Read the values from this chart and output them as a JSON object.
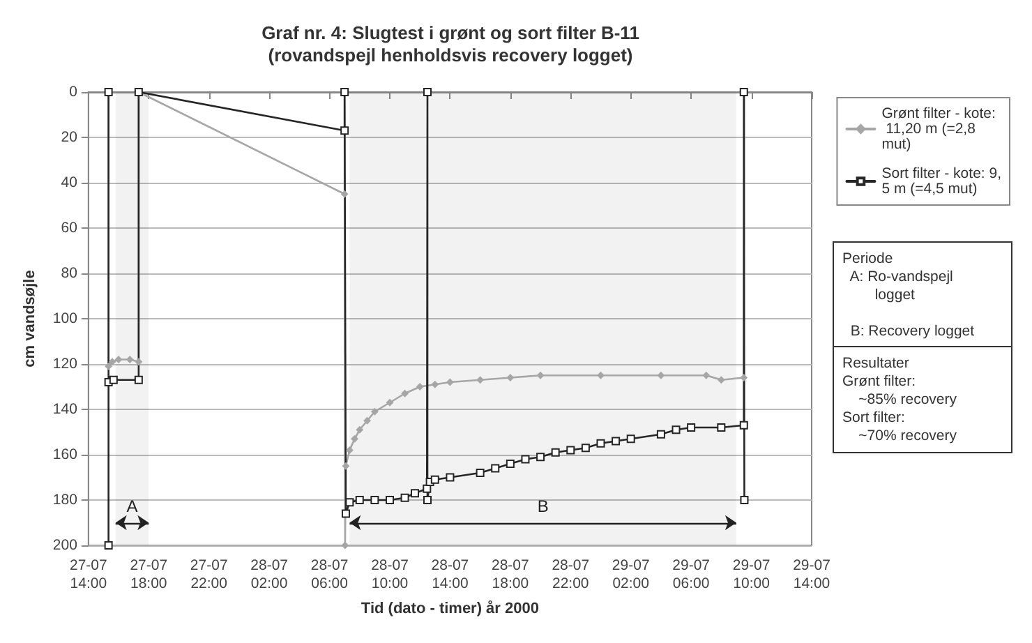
{
  "chart_data": {
    "type": "line",
    "title": "Graf nr. 4: Slugtest i grønt og sort filter B-11",
    "subtitle": "(rovandspejl henholdsvis recovery logget)",
    "xlabel": "Tid (dato - timer) år 2000",
    "ylabel": "cm vandsøjle",
    "xlim": [
      "2000-07-27T14:00",
      "2000-07-29T14:00"
    ],
    "xticks": [
      {
        "value": "2000-07-27T14:00",
        "label": "27-07\n14:00"
      },
      {
        "value": "2000-07-27T18:00",
        "label": "27-07\n18:00"
      },
      {
        "value": "2000-07-27T22:00",
        "label": "27-07\n22:00"
      },
      {
        "value": "2000-07-28T02:00",
        "label": "28-07\n02:00"
      },
      {
        "value": "2000-07-28T06:00",
        "label": "28-07\n06:00"
      },
      {
        "value": "2000-07-28T10:00",
        "label": "28-07\n10:00"
      },
      {
        "value": "2000-07-28T14:00",
        "label": "28-07\n14:00"
      },
      {
        "value": "2000-07-28T18:00",
        "label": "28-07\n18:00"
      },
      {
        "value": "2000-07-28T22:00",
        "label": "28-07\n22:00"
      },
      {
        "value": "2000-07-29T02:00",
        "label": "29-07\n02:00"
      },
      {
        "value": "2000-07-29T06:00",
        "label": "29-07\n06:00"
      },
      {
        "value": "2000-07-29T10:00",
        "label": "29-07\n10:00"
      },
      {
        "value": "2000-07-29T14:00",
        "label": "29-07\n14:00"
      }
    ],
    "ylim": [
      200,
      0
    ],
    "yticks": [
      0,
      20,
      40,
      60,
      80,
      100,
      120,
      140,
      160,
      180,
      200
    ],
    "grid": "y",
    "legend": "right",
    "series": [
      {
        "name": "Grønt filter - kote: 11,20 m (=2,8 mut)",
        "color": "#a6a6a6",
        "marker": "diamond",
        "x": [
          "2000-07-27T15:20",
          "2000-07-27T15:20",
          "2000-07-27T15:35",
          "2000-07-27T16:00",
          "2000-07-27T16:45",
          "2000-07-27T17:20",
          "2000-07-27T17:20",
          "2000-07-28T07:00",
          "2000-07-28T07:00",
          "2000-07-28T07:02",
          "2000-07-28T07:05",
          "2000-07-28T07:20",
          "2000-07-28T07:40",
          "2000-07-28T08:00",
          "2000-07-28T08:30",
          "2000-07-28T09:00",
          "2000-07-28T10:00",
          "2000-07-28T11:00",
          "2000-07-28T12:00",
          "2000-07-28T13:00",
          "2000-07-28T14:00",
          "2000-07-28T16:00",
          "2000-07-28T18:00",
          "2000-07-28T20:00",
          "2000-07-29T00:00",
          "2000-07-29T04:00",
          "2000-07-29T07:00",
          "2000-07-29T08:00",
          "2000-07-29T09:30",
          "2000-07-29T09:32"
        ],
        "values": [
          0,
          121,
          119,
          118,
          118,
          119,
          0,
          45,
          0,
          200,
          165,
          158,
          153,
          149,
          145,
          141,
          137,
          133,
          130,
          129,
          128,
          127,
          126,
          125,
          125,
          125,
          125,
          127,
          126,
          0
        ]
      },
      {
        "name": "Sort filter - kote: 9,5 m (=4,5 mut)",
        "color": "#262626",
        "marker": "square",
        "x": [
          "2000-07-27T15:20",
          "2000-07-27T15:20",
          "2000-07-27T15:20",
          "2000-07-27T15:40",
          "2000-07-27T17:20",
          "2000-07-27T17:20",
          "2000-07-28T07:00",
          "2000-07-28T07:00",
          "2000-07-28T07:05",
          "2000-07-28T07:20",
          "2000-07-28T08:00",
          "2000-07-28T09:00",
          "2000-07-28T10:00",
          "2000-07-28T11:00",
          "2000-07-28T11:40",
          "2000-07-28T12:28",
          "2000-07-28T12:30",
          "2000-07-28T12:30",
          "2000-07-28T12:40",
          "2000-07-28T13:00",
          "2000-07-28T14:00",
          "2000-07-28T16:00",
          "2000-07-28T17:00",
          "2000-07-28T18:00",
          "2000-07-28T19:00",
          "2000-07-28T20:00",
          "2000-07-28T21:00",
          "2000-07-28T22:00",
          "2000-07-28T23:00",
          "2000-07-29T00:00",
          "2000-07-29T01:00",
          "2000-07-29T02:00",
          "2000-07-29T04:00",
          "2000-07-29T05:00",
          "2000-07-29T06:00",
          "2000-07-29T08:00",
          "2000-07-29T09:30",
          "2000-07-29T09:30",
          "2000-07-29T09:32"
        ],
        "values": [
          0,
          200,
          128,
          127,
          127,
          0,
          17,
          0,
          186,
          181,
          180,
          180,
          180,
          179,
          177,
          175,
          0,
          180,
          172,
          171,
          170,
          168,
          166,
          164,
          162,
          161,
          159,
          158,
          157,
          155,
          154,
          153,
          151,
          149,
          148,
          148,
          147,
          0,
          180
        ]
      }
    ],
    "bands": [
      {
        "axis": "x",
        "from": "2000-07-27T15:48",
        "to": "2000-07-27T18:00",
        "label": "A"
      },
      {
        "axis": "x",
        "from": "2000-07-28T07:20",
        "to": "2000-07-29T09:00",
        "label": "B"
      }
    ],
    "annotations": [
      "Periode\n  A: Ro-vandspejl\n        logget\n\n  B: Recovery logget",
      "Resultater\nGrønt filter:\n    ~85% recovery\nSort filter:\n    ~70% recovery"
    ]
  }
}
